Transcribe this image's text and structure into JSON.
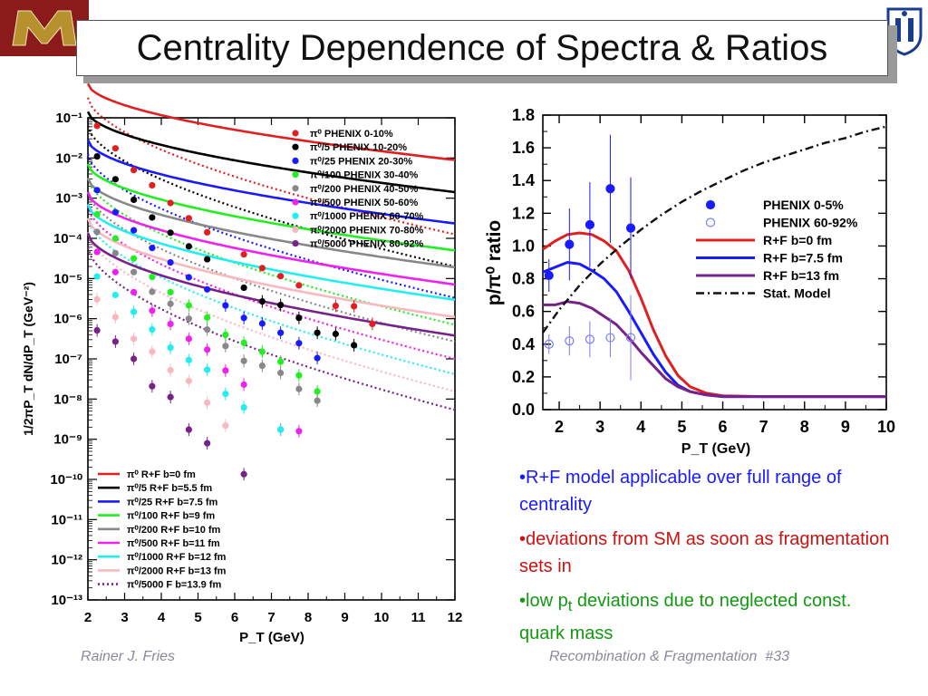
{
  "slide": {
    "title": "Centrality Dependence of Spectra & Ratios",
    "footer_left": "Rainer J. Fries",
    "footer_right": "Recombination & Fragmentation  #33",
    "bullets": [
      {
        "prefix": "•",
        "text": "R+F model applicable over full range of centrality",
        "color": "#1a1aff"
      },
      {
        "prefix": "•",
        "text": "deviations from SM as soon as fragmentation sets in",
        "color": "#cc1111"
      },
      {
        "prefix": "•",
        "text_before": "low p",
        "sub": "t",
        "text_after": " deviations due to neglected const. quark mass",
        "color": "#119911"
      }
    ],
    "logo_left_color": "#b8912f",
    "logo_left_bg": "#8b1a1a",
    "logo_right_color": "#1a3c8c"
  },
  "chart_data": [
    {
      "type": "scatter",
      "xlabel": "P_T (GeV)",
      "ylabel": "1/2πP_T dN/dP_T (GeV⁻²)",
      "xlim": [
        2,
        12
      ],
      "ylim_log10": [
        -13,
        -1
      ],
      "x_ticks": [
        "2",
        "3",
        "4",
        "5",
        "6",
        "7",
        "8",
        "9",
        "10",
        "11",
        "12"
      ],
      "y_ticks": [
        "10⁻¹",
        "10⁻²",
        "10⁻³",
        "10⁻⁴",
        "10⁻⁵",
        "10⁻⁶",
        "10⁻⁷",
        "10⁻⁸",
        "10⁻⁹",
        "10⁻¹⁰",
        "10⁻¹¹",
        "10⁻¹²",
        "10⁻¹³"
      ],
      "legend_top": [
        {
          "name": "π⁰ PHENIX 0-10%",
          "color": "#e02020"
        },
        {
          "name": "π⁰/5 PHENIX 10-20%",
          "color": "#000000"
        },
        {
          "name": "π⁰/25 PHENIX 20-30%",
          "color": "#1a1aff"
        },
        {
          "name": "π⁰/100 PHENIX 30-40%",
          "color": "#22ee22"
        },
        {
          "name": "π⁰/200 PHENIX 40-50%",
          "color": "#888888"
        },
        {
          "name": "π⁰/500 PHENIX 50-60%",
          "color": "#ee22ee"
        },
        {
          "name": "π⁰/1000 PHENIX 60-70%",
          "color": "#22eeee"
        },
        {
          "name": "π⁰/2000 PHENIX 70-80%",
          "color": "#f8b8c0"
        },
        {
          "name": "π⁰/5000 PHENIX 80-92%",
          "color": "#772288"
        }
      ],
      "legend_bottom": [
        {
          "name": "π⁰ R+F b=0 fm",
          "color": "#e02020"
        },
        {
          "name": "π⁰/5 R+F b=5.5 fm",
          "color": "#000000"
        },
        {
          "name": "π⁰/25 R+F b=7.5 fm",
          "color": "#1a1aff"
        },
        {
          "name": "π⁰/100 R+F b=9 fm",
          "color": "#22ee22"
        },
        {
          "name": "π⁰/200 R+F b=10 fm",
          "color": "#888888"
        },
        {
          "name": "π⁰/500 R+F b=11 fm",
          "color": "#ee22ee"
        },
        {
          "name": "π⁰/1000 R+F b=12 fm",
          "color": "#22eeee"
        },
        {
          "name": "π⁰/2000 R+F b=13 fm",
          "color": "#f8b8c0"
        },
        {
          "name": "π⁰/5000 F b=13.9 fm",
          "color": "#772288",
          "dotted": true
        }
      ],
      "series": [
        {
          "color": "#e02020",
          "a": -0.15,
          "d": 1.9,
          "xmax": 9.75,
          "points": [
            [
              2.25,
              -1.2
            ],
            [
              2.75,
              -1.76
            ],
            [
              3.25,
              -2.3
            ],
            [
              3.75,
              -2.68
            ],
            [
              4.25,
              -3.12
            ],
            [
              4.75,
              -3.5
            ],
            [
              5.25,
              -3.85
            ],
            [
              6.25,
              -4.4
            ],
            [
              6.75,
              -4.74
            ],
            [
              7.25,
              -4.94
            ],
            [
              7.75,
              -5.17
            ],
            [
              8.75,
              -5.68
            ],
            [
              9.25,
              -5.69
            ],
            [
              9.75,
              -6.13
            ]
          ]
        },
        {
          "color": "#000000",
          "a": -0.85,
          "d": 2.0,
          "xmax": 9.25,
          "points": [
            [
              2.25,
              -1.96
            ],
            [
              2.75,
              -2.53
            ],
            [
              3.25,
              -3.04
            ],
            [
              3.75,
              -3.48
            ],
            [
              4.25,
              -3.86
            ],
            [
              4.75,
              -4.2
            ],
            [
              5.25,
              -4.52
            ],
            [
              6.25,
              -5.23
            ],
            [
              6.75,
              -5.57
            ],
            [
              7.25,
              -5.66
            ],
            [
              7.75,
              -5.98
            ],
            [
              8.25,
              -6.35
            ],
            [
              8.75,
              -6.38
            ],
            [
              9.25,
              -6.66
            ]
          ]
        },
        {
          "color": "#1a1aff",
          "a": -1.55,
          "d": 2.08,
          "xmax": 8.25,
          "points": [
            [
              2.25,
              -2.8
            ],
            [
              2.75,
              -3.35
            ],
            [
              3.25,
              -3.8
            ],
            [
              3.75,
              -4.24
            ],
            [
              4.25,
              -4.6
            ],
            [
              4.75,
              -4.97
            ],
            [
              5.25,
              -5.27
            ],
            [
              5.75,
              -5.67
            ],
            [
              6.25,
              -5.98
            ],
            [
              6.75,
              -6.12
            ],
            [
              7.25,
              -6.35
            ],
            [
              7.75,
              -6.61
            ],
            [
              8.25,
              -6.98
            ]
          ]
        },
        {
          "color": "#22ee22",
          "a": -2.15,
          "d": 2.15,
          "xmax": 8.25,
          "points": [
            [
              2.25,
              -3.4
            ],
            [
              2.75,
              -4.0
            ],
            [
              3.25,
              -4.5
            ],
            [
              3.75,
              -4.96
            ],
            [
              4.25,
              -5.34
            ],
            [
              4.75,
              -5.67
            ],
            [
              5.25,
              -5.97
            ],
            [
              5.75,
              -6.4
            ],
            [
              6.25,
              -6.6
            ],
            [
              6.75,
              -6.82
            ],
            [
              7.25,
              -7.07
            ],
            [
              7.75,
              -7.41
            ],
            [
              8.25,
              -7.81
            ]
          ]
        },
        {
          "color": "#888888",
          "a": -2.5,
          "d": 2.22,
          "xmax": 8.25,
          "points": [
            [
              2.25,
              -3.84
            ],
            [
              2.75,
              -4.37
            ],
            [
              3.25,
              -4.84
            ],
            [
              3.75,
              -5.33
            ],
            [
              4.25,
              -5.63
            ],
            [
              4.75,
              -6.0
            ],
            [
              5.25,
              -6.27
            ],
            [
              5.75,
              -6.68
            ],
            [
              6.25,
              -7.05
            ],
            [
              6.75,
              -7.17
            ],
            [
              7.25,
              -7.35
            ],
            [
              7.75,
              -7.75
            ],
            [
              8.25,
              -8.04
            ]
          ]
        },
        {
          "color": "#ee22ee",
          "a": -2.85,
          "d": 2.3,
          "xmax": 7.75,
          "points": [
            [
              2.25,
              -4.34
            ],
            [
              2.75,
              -4.84
            ],
            [
              3.25,
              -5.34
            ],
            [
              3.75,
              -5.8
            ],
            [
              4.25,
              -6.13
            ],
            [
              4.75,
              -6.5
            ],
            [
              5.25,
              -6.77
            ],
            [
              5.75,
              -7.29
            ],
            [
              6.25,
              -7.64
            ],
            [
              7.25,
              -8.76
            ],
            [
              7.75,
              -8.8
            ]
          ]
        },
        {
          "color": "#22eeee",
          "a": -3.15,
          "d": 2.38,
          "xmax": 7.25,
          "points": [
            [
              2.25,
              -4.95
            ],
            [
              2.75,
              -5.41
            ],
            [
              3.25,
              -5.83
            ],
            [
              3.75,
              -6.27
            ],
            [
              4.25,
              -6.72
            ],
            [
              4.75,
              -7.03
            ],
            [
              5.25,
              -7.27
            ],
            [
              5.75,
              -7.87
            ],
            [
              6.25,
              -8.21
            ],
            [
              7.25,
              -8.76
            ]
          ]
        },
        {
          "color": "#f8b8c0",
          "a": -3.5,
          "d": 2.46,
          "xmax": 5.75,
          "points": [
            [
              2.25,
              -5.52
            ],
            [
              2.75,
              -5.96
            ],
            [
              3.25,
              -6.5
            ],
            [
              3.75,
              -6.82
            ],
            [
              4.25,
              -7.28
            ],
            [
              4.75,
              -7.55
            ],
            [
              5.25,
              -8.09
            ],
            [
              5.75,
              -8.66
            ]
          ]
        },
        {
          "color": "#772288",
          "a": -3.87,
          "d": 2.55,
          "xmax": 6.25,
          "points": [
            [
              2.25,
              -6.29
            ],
            [
              2.75,
              -6.57
            ],
            [
              3.25,
              -7.0
            ],
            [
              3.75,
              -7.68
            ],
            [
              4.25,
              -7.95
            ],
            [
              4.75,
              -8.76
            ],
            [
              5.25,
              -9.1
            ],
            [
              6.25,
              -9.87
            ]
          ]
        }
      ]
    },
    {
      "type": "line",
      "xlabel": "P_T (GeV)",
      "ylabel": "p/π⁰ ratio",
      "xlim": [
        1.6,
        10
      ],
      "ylim": [
        0,
        1.8
      ],
      "x_ticks": [
        "2",
        "3",
        "4",
        "5",
        "6",
        "7",
        "8",
        "9",
        "10"
      ],
      "y_ticks": [
        "0.0",
        "0.2",
        "0.4",
        "0.6",
        "0.8",
        "1.0",
        "1.2",
        "1.4",
        "1.6",
        "1.8"
      ],
      "legend": [
        {
          "name": "PHENIX 0-5%",
          "color": "#1a1aff",
          "marker": "filled"
        },
        {
          "name": "PHENIX 60-92%",
          "color": "#7a7aff",
          "marker": "open"
        },
        {
          "name": "R+F b=0 fm",
          "color": "#e02020"
        },
        {
          "name": "R+F b=7.5 fm",
          "color": "#1a1aff"
        },
        {
          "name": "R+F b=13 fm",
          "color": "#772288"
        },
        {
          "name": "Stat. Model",
          "color": "#111111",
          "dash": "dashdot"
        }
      ],
      "data_central": {
        "x": [
          1.75,
          2.25,
          2.75,
          3.25,
          3.75
        ],
        "y": [
          0.82,
          1.01,
          1.13,
          1.35,
          1.11
        ],
        "err": [
          0.1,
          0.22,
          0.26,
          0.33,
          0.31
        ]
      },
      "data_peripheral": {
        "x": [
          1.75,
          2.25,
          2.75,
          3.25,
          3.75
        ],
        "y": [
          0.4,
          0.42,
          0.43,
          0.44,
          0.44
        ],
        "err": [
          0.06,
          0.09,
          0.11,
          0.12,
          0.26
        ]
      },
      "rf_b0": [
        [
          1.6,
          0.98
        ],
        [
          1.9,
          1.03
        ],
        [
          2.2,
          1.07
        ],
        [
          2.5,
          1.08
        ],
        [
          2.8,
          1.07
        ],
        [
          3.1,
          1.03
        ],
        [
          3.4,
          0.97
        ],
        [
          3.7,
          0.85
        ],
        [
          4.0,
          0.68
        ],
        [
          4.3,
          0.49
        ],
        [
          4.6,
          0.33
        ],
        [
          4.9,
          0.21
        ],
        [
          5.2,
          0.14
        ],
        [
          5.6,
          0.1
        ],
        [
          6.0,
          0.085
        ],
        [
          7.0,
          0.08
        ],
        [
          8.0,
          0.08
        ],
        [
          10.0,
          0.08
        ]
      ],
      "rf_b75": [
        [
          1.6,
          0.84
        ],
        [
          1.9,
          0.87
        ],
        [
          2.2,
          0.9
        ],
        [
          2.5,
          0.89
        ],
        [
          2.8,
          0.85
        ],
        [
          3.1,
          0.8
        ],
        [
          3.4,
          0.72
        ],
        [
          3.7,
          0.6
        ],
        [
          4.0,
          0.47
        ],
        [
          4.3,
          0.34
        ],
        [
          4.6,
          0.23
        ],
        [
          4.9,
          0.15
        ],
        [
          5.2,
          0.11
        ],
        [
          5.6,
          0.09
        ],
        [
          6.0,
          0.08
        ],
        [
          7.0,
          0.08
        ],
        [
          10.0,
          0.08
        ]
      ],
      "rf_b13": [
        [
          1.6,
          0.64
        ],
        [
          1.9,
          0.64
        ],
        [
          2.2,
          0.66
        ],
        [
          2.5,
          0.65
        ],
        [
          2.8,
          0.62
        ],
        [
          3.1,
          0.57
        ],
        [
          3.4,
          0.52
        ],
        [
          3.7,
          0.44
        ],
        [
          4.0,
          0.35
        ],
        [
          4.3,
          0.27
        ],
        [
          4.6,
          0.19
        ],
        [
          4.9,
          0.14
        ],
        [
          5.2,
          0.11
        ],
        [
          5.6,
          0.09
        ],
        [
          6.0,
          0.08
        ],
        [
          7.0,
          0.08
        ],
        [
          10.0,
          0.08
        ]
      ],
      "stat_model": [
        [
          1.6,
          0.47
        ],
        [
          2.0,
          0.61
        ],
        [
          2.5,
          0.76
        ],
        [
          3.0,
          0.89
        ],
        [
          3.5,
          1.0
        ],
        [
          4.0,
          1.1
        ],
        [
          4.5,
          1.19
        ],
        [
          5.0,
          1.27
        ],
        [
          5.5,
          1.34
        ],
        [
          6.0,
          1.4
        ],
        [
          6.5,
          1.46
        ],
        [
          7.0,
          1.51
        ],
        [
          7.5,
          1.55
        ],
        [
          8.0,
          1.59
        ],
        [
          8.5,
          1.63
        ],
        [
          9.0,
          1.66
        ],
        [
          9.5,
          1.7
        ],
        [
          10.0,
          1.73
        ]
      ]
    }
  ]
}
